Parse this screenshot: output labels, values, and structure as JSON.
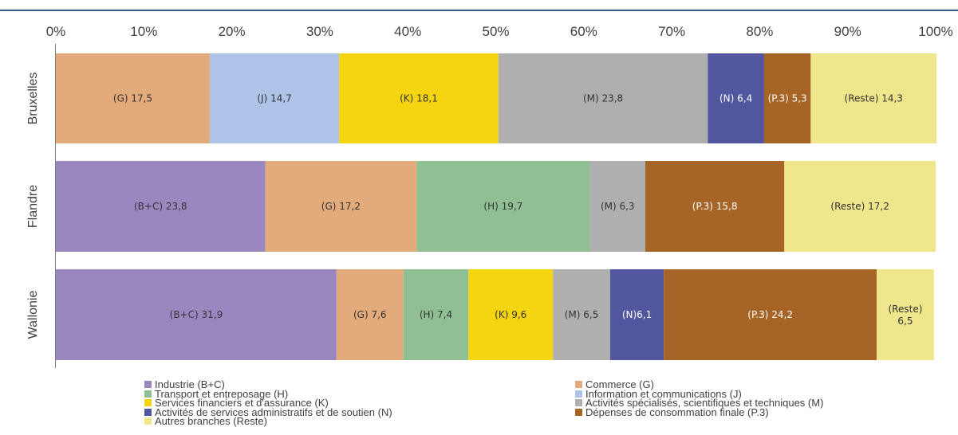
{
  "chart_data": {
    "type": "bar",
    "orientation": "horizontal",
    "stacked": "percent",
    "xlim": [
      0,
      100
    ],
    "x_ticks": [
      "0%",
      "10%",
      "20%",
      "30%",
      "40%",
      "50%",
      "60%",
      "70%",
      "80%",
      "90%",
      "100%"
    ],
    "categories": [
      "Bruxelles",
      "Flandre",
      "Wallonie"
    ],
    "legend_position": "bottom",
    "grid": false,
    "series_legend": [
      {
        "key": "BC",
        "name": "Industrie (B+C)",
        "color": "#9b87c0"
      },
      {
        "key": "G",
        "name": "Commerce (G)",
        "color": "#e3ab7c"
      },
      {
        "key": "H",
        "name": "Transport et entreposage (H)",
        "color": "#8fbf92"
      },
      {
        "key": "J",
        "name": "Information et communications (J)",
        "color": "#aec3e8"
      },
      {
        "key": "K",
        "name": "Services financiers et d'assurance (K)",
        "color": "#f5d411"
      },
      {
        "key": "M",
        "name": "Activités spécialisés, scientifiques et techniques (M)",
        "color": "#afafaf"
      },
      {
        "key": "N",
        "name": "Activités de services administratifs et de soutien (N)",
        "color": "#52569f"
      },
      {
        "key": "P3",
        "name": "Dépenses de consommation finale (P.3)",
        "color": "#a66426"
      },
      {
        "key": "Reste",
        "name": "Autres branches (Reste)",
        "color": "#f0e68c"
      }
    ],
    "bars": [
      {
        "category": "Bruxelles",
        "segments": [
          {
            "key": "G",
            "value": 17.5,
            "label": "(G) 17,5"
          },
          {
            "key": "J",
            "value": 14.7,
            "label": "(J) 14,7"
          },
          {
            "key": "K",
            "value": 18.1,
            "label": "(K) 18,1"
          },
          {
            "key": "M",
            "value": 23.8,
            "label": "(M) 23,8"
          },
          {
            "key": "N",
            "value": 6.4,
            "label": "(N) 6,4"
          },
          {
            "key": "P3",
            "value": 5.3,
            "label": "(P.3) 5,3"
          },
          {
            "key": "Reste",
            "value": 14.3,
            "label": "(Reste) 14,3"
          }
        ]
      },
      {
        "category": "Flandre",
        "segments": [
          {
            "key": "BC",
            "value": 23.8,
            "label": "(B+C) 23,8"
          },
          {
            "key": "G",
            "value": 17.2,
            "label": "(G) 17,2"
          },
          {
            "key": "H",
            "value": 19.7,
            "label": "(H) 19,7"
          },
          {
            "key": "M",
            "value": 6.3,
            "label": "(M) 6,3"
          },
          {
            "key": "P3",
            "value": 15.8,
            "label": "(P.3) 15,8"
          },
          {
            "key": "Reste",
            "value": 17.2,
            "label": "(Reste) 17,2"
          }
        ]
      },
      {
        "category": "Wallonie",
        "segments": [
          {
            "key": "BC",
            "value": 31.9,
            "label": "(B+C) 31,9"
          },
          {
            "key": "G",
            "value": 7.6,
            "label": "(G) 7,6"
          },
          {
            "key": "H",
            "value": 7.4,
            "label": "(H) 7,4"
          },
          {
            "key": "K",
            "value": 9.6,
            "label": "(K) 9,6"
          },
          {
            "key": "M",
            "value": 6.5,
            "label": "(M) 6,5"
          },
          {
            "key": "N",
            "value": 6.1,
            "label": "(N)6,1"
          },
          {
            "key": "P3",
            "value": 24.2,
            "label": "(P.3) 24,2"
          },
          {
            "key": "Reste",
            "value": 6.5,
            "label": "(Reste) 6,5"
          }
        ]
      }
    ]
  },
  "legend": {
    "items": [
      {
        "name": "Industrie (B+C)",
        "color": "#9b87c0"
      },
      {
        "name": "Commerce (G)",
        "color": "#e3ab7c"
      },
      {
        "name": "Transport et entreposage (H)",
        "color": "#8fbf92"
      },
      {
        "name": "Information et communications (J)",
        "color": "#aec3e8"
      },
      {
        "name": "Services financiers et d'assurance (K)",
        "color": "#f5d411"
      },
      {
        "name": "Activités spécialisés, scientifiques et techniques (M)",
        "color": "#afafaf"
      },
      {
        "name": "Activités de services administratifs et de soutien (N)",
        "color": "#52569f"
      },
      {
        "name": "Dépenses de consommation finale (P.3)",
        "color": "#a66426"
      },
      {
        "name": "Autres branches (Reste)",
        "color": "#f0e68c"
      }
    ]
  }
}
